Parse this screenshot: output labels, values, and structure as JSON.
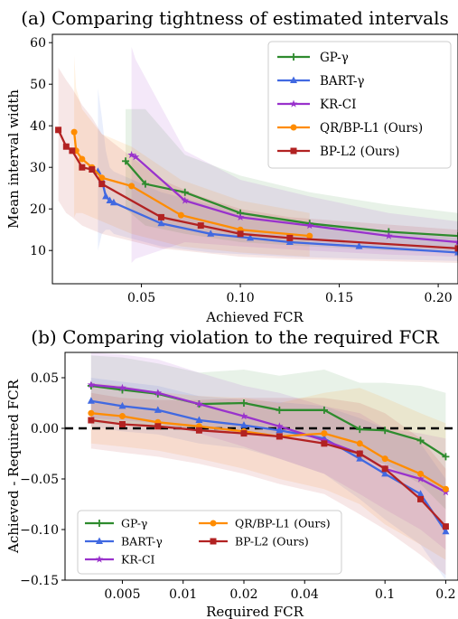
{
  "colors": {
    "GP": "#2e8b2e",
    "BART": "#4169e1",
    "KR": "#9932cc",
    "QR": "#ff8c00",
    "BP": "#b22222"
  },
  "legend_labels": {
    "GP": "GP-γ",
    "BART": "BART-γ",
    "KR": "KR-CI",
    "QR": "QR/BP-L1 (Ours)",
    "BP": "BP-L2 (Ours)"
  },
  "chart_data": [
    {
      "type": "line",
      "title": "(a) Comparing tightness of estimated intervals",
      "xlabel": "Achieved FCR",
      "ylabel": "Mean interval width",
      "xlim": [
        0.005,
        0.21
      ],
      "ylim": [
        2,
        62
      ],
      "xticks": [
        0.05,
        0.1,
        0.15,
        0.2
      ],
      "xtick_labels": [
        "0.05",
        "0.10",
        "0.15",
        "0.20"
      ],
      "yticks": [
        10,
        20,
        30,
        40,
        50,
        60
      ],
      "ytick_labels": [
        "10",
        "20",
        "30",
        "40",
        "50",
        "60"
      ],
      "legend": "top-right",
      "series": [
        {
          "key": "GP",
          "marker": "plus",
          "x": [
            0.042,
            0.052,
            0.072,
            0.1,
            0.135,
            0.175,
            0.21
          ],
          "y": [
            31.5,
            26.0,
            24.0,
            19.0,
            16.5,
            14.5,
            13.5
          ],
          "lower": [
            20,
            16,
            14,
            12,
            11,
            10,
            9.5
          ],
          "upper": [
            44,
            44,
            33,
            28,
            24,
            21,
            19
          ]
        },
        {
          "key": "BART",
          "marker": "triangle",
          "x": [
            0.028,
            0.03,
            0.032,
            0.034,
            0.036,
            0.06,
            0.085,
            0.105,
            0.125,
            0.16,
            0.21
          ],
          "y": [
            29.0,
            27.0,
            23.0,
            22.0,
            21.5,
            16.5,
            14.0,
            13.0,
            12.0,
            11.0,
            9.5
          ],
          "lower": [
            10,
            14,
            15,
            15,
            14,
            11,
            9.5,
            9,
            8.5,
            8,
            7.5
          ],
          "upper": [
            49,
            42,
            34,
            30,
            29,
            24,
            21,
            19,
            17,
            15,
            13
          ]
        },
        {
          "key": "KR",
          "marker": "star",
          "x": [
            0.045,
            0.047,
            0.072,
            0.1,
            0.135,
            0.175,
            0.21
          ],
          "y": [
            33.0,
            32.5,
            22.0,
            18.0,
            16.0,
            13.5,
            12.0
          ],
          "lower": [
            7,
            8,
            12,
            11,
            10,
            9,
            8.5
          ],
          "upper": [
            59,
            56,
            34,
            27,
            23,
            19,
            17
          ]
        },
        {
          "key": "QR",
          "marker": "circle",
          "x": [
            0.016,
            0.017,
            0.02,
            0.025,
            0.03,
            0.045,
            0.07,
            0.1,
            0.135
          ],
          "y": [
            38.5,
            34.0,
            32.0,
            30.0,
            27.5,
            25.5,
            18.5,
            15.0,
            13.5
          ],
          "lower": [
            18,
            19,
            19,
            18,
            17,
            14,
            11,
            9.5,
            8.5
          ],
          "upper": [
            57,
            49,
            44,
            41,
            38,
            35,
            27,
            22,
            19
          ]
        },
        {
          "key": "BP",
          "marker": "square",
          "x": [
            0.008,
            0.012,
            0.015,
            0.02,
            0.025,
            0.03,
            0.06,
            0.08,
            0.1,
            0.125,
            0.21
          ],
          "y": [
            39.0,
            35.0,
            34.0,
            30.0,
            29.5,
            26.0,
            18.0,
            16.0,
            14.0,
            13.0,
            10.5
          ],
          "lower": [
            22,
            19,
            18,
            16,
            15,
            14,
            10.5,
            9.5,
            8.5,
            8,
            7
          ],
          "upper": [
            54,
            51,
            49,
            45,
            42,
            38,
            27,
            23,
            20,
            18,
            15
          ]
        }
      ]
    },
    {
      "type": "line",
      "title": "(b) Comparing violation to the required FCR",
      "xlabel": "Required FCR",
      "ylabel": "Achieved - Required FCR",
      "x_scale": "log",
      "xlim": [
        0.0026,
        0.23
      ],
      "ylim": [
        -0.15,
        0.075
      ],
      "xticks": [
        0.005,
        0.01,
        0.02,
        0.04,
        0.1,
        0.2
      ],
      "xtick_labels": [
        "0.005",
        "0.01",
        "0.02",
        "0.04",
        "0.1",
        "0.2"
      ],
      "yticks": [
        0.05,
        0.0,
        -0.05,
        -0.1,
        -0.15
      ],
      "ytick_labels": [
        "0.05",
        "0.00",
        "−0.05",
        "−0.10",
        "−0.15"
      ],
      "reference_line": 0.0,
      "legend": "bottom-left",
      "x": [
        0.0035,
        0.005,
        0.0075,
        0.012,
        0.02,
        0.03,
        0.05,
        0.075,
        0.1,
        0.15,
        0.2
      ],
      "series": [
        {
          "key": "GP",
          "marker": "plus",
          "y": [
            0.042,
            0.038,
            0.034,
            0.024,
            0.025,
            0.018,
            0.018,
            -0.001,
            -0.002,
            -0.012,
            -0.028
          ],
          "lower": [
            0.005,
            0.004,
            0.002,
            -0.003,
            -0.004,
            -0.006,
            -0.008,
            -0.03,
            -0.035,
            -0.055,
            -0.08
          ],
          "upper": [
            0.072,
            0.07,
            0.064,
            0.055,
            0.058,
            0.052,
            0.058,
            0.045,
            0.045,
            0.042,
            0.035
          ]
        },
        {
          "key": "BART",
          "marker": "triangle",
          "y": [
            0.027,
            0.022,
            0.018,
            0.008,
            0.003,
            -0.002,
            -0.01,
            -0.03,
            -0.045,
            -0.065,
            -0.102
          ],
          "lower": [
            0.002,
            -0.003,
            -0.006,
            -0.015,
            -0.02,
            -0.03,
            -0.045,
            -0.07,
            -0.09,
            -0.115,
            -0.15
          ],
          "upper": [
            0.05,
            0.046,
            0.042,
            0.032,
            0.028,
            0.026,
            0.022,
            0.01,
            0.0,
            -0.015,
            -0.05
          ]
        },
        {
          "key": "KR",
          "marker": "star",
          "y": [
            0.043,
            0.04,
            0.035,
            0.024,
            0.012,
            0.002,
            -0.012,
            -0.025,
            -0.04,
            -0.05,
            -0.063
          ],
          "lower": [
            0.01,
            0.008,
            0.005,
            -0.005,
            -0.018,
            -0.03,
            -0.045,
            -0.065,
            -0.08,
            -0.1,
            -0.12
          ],
          "upper": [
            0.075,
            0.073,
            0.068,
            0.055,
            0.042,
            0.035,
            0.022,
            0.015,
            0.0,
            -0.005,
            -0.01
          ]
        },
        {
          "key": "QR",
          "marker": "circle",
          "y": [
            0.015,
            0.012,
            0.006,
            0.002,
            -0.003,
            -0.008,
            -0.005,
            -0.015,
            -0.03,
            -0.045,
            -0.06
          ],
          "lower": [
            -0.015,
            -0.018,
            -0.022,
            -0.03,
            -0.04,
            -0.05,
            -0.06,
            -0.075,
            -0.095,
            -0.115,
            -0.13
          ],
          "upper": [
            0.045,
            0.042,
            0.036,
            0.032,
            0.03,
            0.025,
            0.035,
            0.04,
            0.03,
            0.015,
            0.005
          ]
        },
        {
          "key": "BP",
          "marker": "square",
          "y": [
            0.008,
            0.004,
            0.002,
            -0.002,
            -0.005,
            -0.008,
            -0.015,
            -0.025,
            -0.04,
            -0.07,
            -0.097
          ],
          "lower": [
            -0.02,
            -0.024,
            -0.028,
            -0.035,
            -0.045,
            -0.055,
            -0.065,
            -0.085,
            -0.1,
            -0.125,
            -0.145
          ],
          "upper": [
            0.035,
            0.03,
            0.028,
            0.028,
            0.03,
            0.03,
            0.03,
            0.025,
            0.015,
            -0.01,
            -0.04
          ]
        }
      ]
    }
  ]
}
